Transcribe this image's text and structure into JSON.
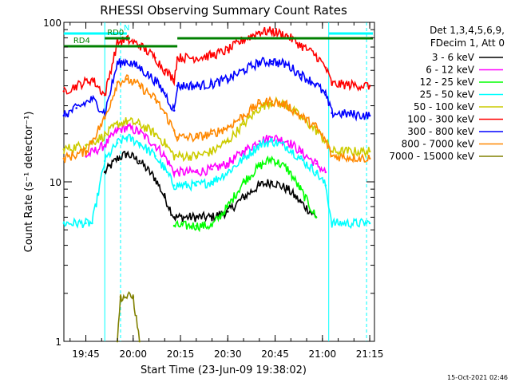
{
  "chart_data": {
    "type": "line",
    "title": "RHESSI Observing Summary Count Rates",
    "xlabel": "Start Time (23-Jun-09 19:38:02)",
    "ylabel": "Count Rate (s⁻¹ detector⁻¹)",
    "yscale": "log",
    "ylim": [
      1,
      100
    ],
    "xlim": [
      "19:38:02",
      "21:16:30"
    ],
    "x_ticks": [
      "19:45",
      "20:00",
      "20:15",
      "20:30",
      "20:45",
      "21:00",
      "21:15"
    ],
    "y_ticks": [
      "1",
      "10",
      "100"
    ],
    "detector_info": [
      "Det 1,3,4,5,6,9,",
      "FDecim 1, Att 0"
    ],
    "footer_date": "15-Oct-2021 02:46",
    "legend_position": "right",
    "series": [
      {
        "name": "3 - 6 keV",
        "color": "#000000",
        "points": [
          [
            "19:51",
            11.5
          ],
          [
            "19:55",
            14.0
          ],
          [
            "19:58",
            15.0
          ],
          [
            "20:02",
            13.5
          ],
          [
            "20:07",
            10.5
          ],
          [
            "20:10",
            8.0
          ],
          [
            "20:13",
            6.0
          ],
          [
            "20:20",
            6.0
          ],
          [
            "20:25",
            6.0
          ],
          [
            "20:30",
            6.5
          ],
          [
            "20:35",
            8.0
          ],
          [
            "20:40",
            9.5
          ],
          [
            "20:44",
            10.0
          ],
          [
            "20:49",
            9.0
          ],
          [
            "20:53",
            7.5
          ],
          [
            "20:58",
            6.0
          ]
        ]
      },
      {
        "name": "6 - 12 keV",
        "color": "#ff00ff",
        "points": [
          [
            "19:45",
            14.5
          ],
          [
            "19:51",
            17.0
          ],
          [
            "19:55",
            21.0
          ],
          [
            "19:58",
            22.0
          ],
          [
            "20:02",
            20.5
          ],
          [
            "20:07",
            17.0
          ],
          [
            "20:10",
            14.5
          ],
          [
            "20:13",
            11.5
          ],
          [
            "20:20",
            11.5
          ],
          [
            "20:25",
            12.0
          ],
          [
            "20:30",
            13.0
          ],
          [
            "20:35",
            15.5
          ],
          [
            "20:40",
            18.0
          ],
          [
            "20:44",
            19.0
          ],
          [
            "20:49",
            18.0
          ],
          [
            "20:53",
            15.5
          ],
          [
            "20:58",
            13.0
          ],
          [
            "21:01",
            11.5
          ]
        ]
      },
      {
        "name": "12 - 25 keV",
        "color": "#00ff00",
        "points": [
          [
            "20:13",
            5.3
          ],
          [
            "20:20",
            5.3
          ],
          [
            "20:25",
            5.3
          ],
          [
            "20:30",
            7.0
          ],
          [
            "20:35",
            10.0
          ],
          [
            "20:40",
            12.5
          ],
          [
            "20:44",
            14.0
          ],
          [
            "20:49",
            12.0
          ],
          [
            "20:53",
            9.0
          ],
          [
            "20:58",
            6.0
          ]
        ]
      },
      {
        "name": "25 - 50 keV",
        "color": "#00ffff",
        "points": [
          [
            "19:38",
            5.5
          ],
          [
            "19:45",
            5.5
          ],
          [
            "19:47",
            5.5
          ],
          [
            "19:51",
            13.5
          ],
          [
            "19:55",
            17.5
          ],
          [
            "19:58",
            19.0
          ],
          [
            "20:02",
            17.5
          ],
          [
            "20:07",
            14.5
          ],
          [
            "20:10",
            12.0
          ],
          [
            "20:13",
            9.5
          ],
          [
            "20:20",
            9.5
          ],
          [
            "20:25",
            10.0
          ],
          [
            "20:30",
            11.5
          ],
          [
            "20:35",
            14.0
          ],
          [
            "20:40",
            17.0
          ],
          [
            "20:44",
            18.0
          ],
          [
            "20:49",
            16.5
          ],
          [
            "20:53",
            14.0
          ],
          [
            "20:58",
            11.5
          ],
          [
            "21:01",
            9.5
          ],
          [
            "21:03",
            5.5
          ],
          [
            "21:15",
            5.5
          ]
        ]
      },
      {
        "name": "50 - 100 keV",
        "color": "#cccc00",
        "points": [
          [
            "19:38",
            16.0
          ],
          [
            "19:45",
            17.0
          ],
          [
            "19:51",
            19.5
          ],
          [
            "19:55",
            23.0
          ],
          [
            "19:58",
            24.0
          ],
          [
            "20:02",
            23.0
          ],
          [
            "20:07",
            20.0
          ],
          [
            "20:10",
            17.5
          ],
          [
            "20:13",
            14.5
          ],
          [
            "20:20",
            14.5
          ],
          [
            "20:25",
            15.5
          ],
          [
            "20:30",
            18.0
          ],
          [
            "20:35",
            23.0
          ],
          [
            "20:40",
            29.0
          ],
          [
            "20:44",
            32.0
          ],
          [
            "20:49",
            30.0
          ],
          [
            "20:53",
            25.5
          ],
          [
            "20:58",
            21.0
          ],
          [
            "21:01",
            18.0
          ],
          [
            "21:03",
            15.5
          ],
          [
            "21:15",
            15.5
          ]
        ]
      },
      {
        "name": "100 - 300 keV",
        "color": "#ff0000",
        "points": [
          [
            "19:38",
            37.0
          ],
          [
            "19:42",
            40.0
          ],
          [
            "19:47",
            44.0
          ],
          [
            "19:51",
            35.0
          ],
          [
            "19:55",
            75.0
          ],
          [
            "19:58",
            78.0
          ],
          [
            "20:02",
            72.0
          ],
          [
            "20:07",
            60.0
          ],
          [
            "20:10",
            50.0
          ],
          [
            "20:13",
            44.0
          ],
          [
            "20:14",
            60.0
          ],
          [
            "20:20",
            60.0
          ],
          [
            "20:25",
            62.0
          ],
          [
            "20:30",
            67.0
          ],
          [
            "20:35",
            78.0
          ],
          [
            "20:40",
            87.0
          ],
          [
            "20:44",
            88.0
          ],
          [
            "20:49",
            82.0
          ],
          [
            "20:53",
            72.0
          ],
          [
            "20:58",
            62.0
          ],
          [
            "21:01",
            52.0
          ],
          [
            "21:03",
            41.0
          ],
          [
            "21:15",
            40.0
          ]
        ]
      },
      {
        "name": "300 - 800 keV",
        "color": "#0000ff",
        "points": [
          [
            "19:38",
            26.0
          ],
          [
            "19:42",
            29.0
          ],
          [
            "19:47",
            33.0
          ],
          [
            "19:51",
            27.0
          ],
          [
            "19:55",
            55.0
          ],
          [
            "19:58",
            57.0
          ],
          [
            "20:02",
            52.0
          ],
          [
            "20:07",
            43.0
          ],
          [
            "20:10",
            36.0
          ],
          [
            "20:13",
            28.0
          ],
          [
            "20:14",
            40.0
          ],
          [
            "20:20",
            40.0
          ],
          [
            "20:25",
            41.0
          ],
          [
            "20:30",
            44.0
          ],
          [
            "20:35",
            50.0
          ],
          [
            "20:40",
            56.0
          ],
          [
            "20:44",
            57.0
          ],
          [
            "20:49",
            54.0
          ],
          [
            "20:53",
            47.0
          ],
          [
            "20:58",
            41.0
          ],
          [
            "21:01",
            35.0
          ],
          [
            "21:03",
            27.0
          ],
          [
            "21:15",
            26.0
          ]
        ]
      },
      {
        "name": "800 - 7000 keV",
        "color": "#ff8800",
        "points": [
          [
            "19:38",
            14.0
          ],
          [
            "19:45",
            15.5
          ],
          [
            "19:51",
            25.0
          ],
          [
            "19:55",
            42.0
          ],
          [
            "19:58",
            44.0
          ],
          [
            "20:02",
            40.0
          ],
          [
            "20:07",
            33.0
          ],
          [
            "20:10",
            27.0
          ],
          [
            "20:13",
            21.0
          ],
          [
            "20:14",
            19.0
          ],
          [
            "20:20",
            19.0
          ],
          [
            "20:25",
            20.0
          ],
          [
            "20:30",
            22.0
          ],
          [
            "20:35",
            26.0
          ],
          [
            "20:40",
            31.0
          ],
          [
            "20:44",
            32.0
          ],
          [
            "20:49",
            30.0
          ],
          [
            "20:53",
            26.0
          ],
          [
            "20:58",
            22.0
          ],
          [
            "21:01",
            18.0
          ],
          [
            "21:03",
            14.5
          ],
          [
            "21:15",
            14.0
          ]
        ]
      },
      {
        "name": "7000 - 15000 keV",
        "color": "#808000",
        "points": [
          [
            "19:55",
            1.0
          ],
          [
            "19:56",
            1.9
          ],
          [
            "20:00",
            1.9
          ],
          [
            "20:02",
            1.0
          ]
        ]
      }
    ],
    "time_bars": [
      {
        "label": "N",
        "color": "#00ffff",
        "segments": [
          [
            "19:38",
            "19:58"
          ],
          [
            "21:02",
            "21:16"
          ]
        ]
      },
      {
        "label": "RD0",
        "color": "#008000",
        "segments": [
          [
            "19:51",
            "19:59"
          ],
          [
            "20:14",
            "21:16"
          ]
        ]
      },
      {
        "label": "RD4",
        "color": "#008000",
        "segments": [
          [
            "19:38",
            "20:14"
          ]
        ]
      }
    ],
    "vertical_markers": [
      {
        "time": "19:51",
        "color": "#00ffff",
        "style": "solid"
      },
      {
        "time": "19:56",
        "color": "#00ffff",
        "style": "dashed"
      },
      {
        "time": "21:02",
        "color": "#00ffff",
        "style": "solid"
      },
      {
        "time": "21:14",
        "color": "#00ffff",
        "style": "dashed"
      }
    ]
  }
}
